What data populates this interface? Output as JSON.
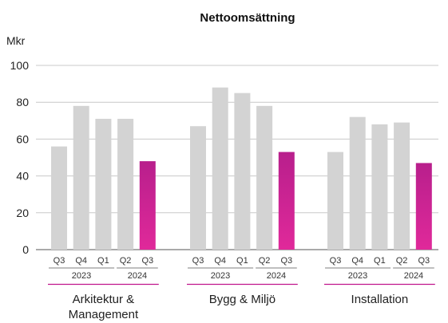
{
  "chart_data": {
    "type": "bar",
    "title": "Nettoomsättning",
    "ylabel": "Mkr",
    "ylim": [
      0,
      100
    ],
    "yticks": [
      0,
      20,
      40,
      60,
      80,
      100
    ],
    "grid": true,
    "quarters": [
      "Q3",
      "Q4",
      "Q1",
      "Q2",
      "Q3"
    ],
    "year_labels": [
      "2023",
      "2024"
    ],
    "colors": {
      "previous": "#d3d3d3",
      "current": "#b81f8c",
      "current_light": "#e0299a",
      "group_line": "#c0148c"
    },
    "groups": [
      {
        "label_lines": [
          "Arkitektur &",
          "Management"
        ],
        "values": [
          56,
          78,
          71,
          71,
          48
        ]
      },
      {
        "label_lines": [
          "Bygg & Miljö"
        ],
        "values": [
          67,
          88,
          85,
          78,
          53
        ]
      },
      {
        "label_lines": [
          "Installation"
        ],
        "values": [
          53,
          72,
          68,
          69,
          47
        ]
      }
    ]
  }
}
